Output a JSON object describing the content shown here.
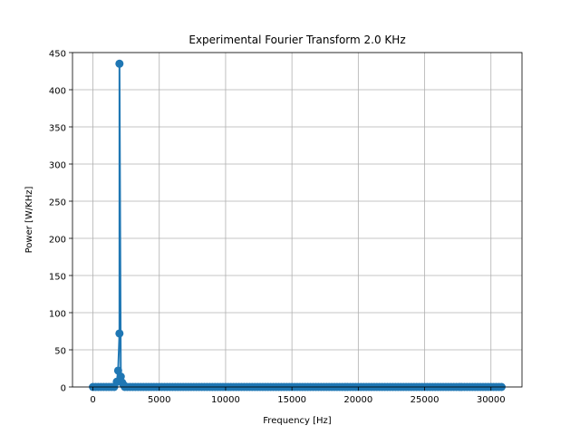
{
  "chart_data": {
    "type": "line",
    "title": "Experimental Fourier Transform 2.0 KHz",
    "xlabel": "Frequency [Hz]",
    "ylabel": "Power [W/KHz]",
    "xlim": [
      -1540,
      32340
    ],
    "ylim": [
      0,
      450
    ],
    "xticks": [
      0,
      5000,
      10000,
      15000,
      20000,
      25000,
      30000
    ],
    "yticks": [
      0,
      50,
      100,
      150,
      200,
      250,
      300,
      350,
      400,
      450
    ],
    "grid": true,
    "legend": "none",
    "series": [
      {
        "color": "#1f77b4",
        "marker": "circle",
        "x_start": 0,
        "x_step": 200,
        "x_end": 30800,
        "baseline": 0,
        "points": [
          {
            "x": 1800,
            "y": 7
          },
          {
            "x": 1900,
            "y": 22
          },
          {
            "x": 2000,
            "y": 435
          },
          {
            "x": 2000,
            "y": 72
          },
          {
            "x": 2100,
            "y": 14
          },
          {
            "x": 2200,
            "y": 6
          },
          {
            "x": 2300,
            "y": 3
          }
        ]
      }
    ]
  }
}
